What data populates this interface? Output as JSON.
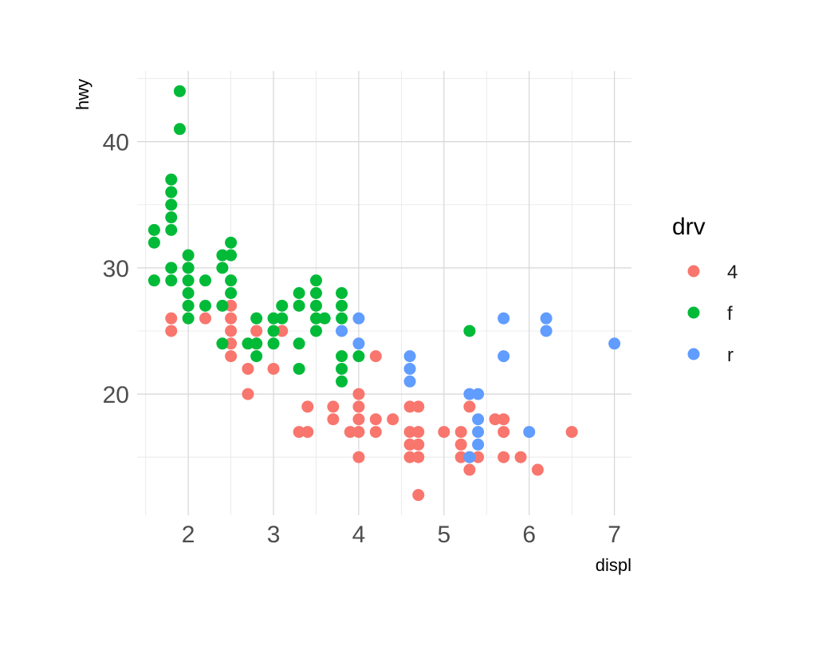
{
  "chart_data": {
    "type": "scatter",
    "title": "",
    "xlabel": "displ",
    "ylabel": "hwy",
    "xlim": [
      1.4,
      7.2
    ],
    "ylim": [
      10.4,
      45.6
    ],
    "x_ticks": [
      2,
      3,
      4,
      5,
      6,
      7
    ],
    "y_ticks": [
      20,
      30,
      40
    ],
    "grid": true,
    "legend": {
      "title": "drv",
      "position": "right"
    },
    "series": [
      {
        "name": "4",
        "color": "#F8766D",
        "points": [
          [
            1.8,
            26
          ],
          [
            1.8,
            25
          ],
          [
            2.2,
            26
          ],
          [
            2.5,
            27
          ],
          [
            2.5,
            26
          ],
          [
            2.5,
            25
          ],
          [
            2.5,
            24
          ],
          [
            2.5,
            23
          ],
          [
            2.7,
            22
          ],
          [
            2.7,
            20
          ],
          [
            2.8,
            25
          ],
          [
            2.8,
            24
          ],
          [
            3.0,
            22
          ],
          [
            3.1,
            25
          ],
          [
            3.3,
            17
          ],
          [
            3.4,
            19
          ],
          [
            3.4,
            17
          ],
          [
            3.7,
            19
          ],
          [
            3.7,
            18
          ],
          [
            3.9,
            17
          ],
          [
            4.0,
            20
          ],
          [
            4.0,
            19
          ],
          [
            4.0,
            18
          ],
          [
            4.0,
            17
          ],
          [
            4.0,
            15
          ],
          [
            4.2,
            23
          ],
          [
            4.2,
            18
          ],
          [
            4.2,
            17
          ],
          [
            4.4,
            18
          ],
          [
            4.6,
            19
          ],
          [
            4.6,
            17
          ],
          [
            4.6,
            16
          ],
          [
            4.6,
            15
          ],
          [
            4.7,
            19
          ],
          [
            4.7,
            17
          ],
          [
            4.7,
            16
          ],
          [
            4.7,
            15
          ],
          [
            4.7,
            12
          ],
          [
            5.0,
            17
          ],
          [
            5.2,
            17
          ],
          [
            5.2,
            16
          ],
          [
            5.2,
            15
          ],
          [
            5.3,
            19
          ],
          [
            5.3,
            15
          ],
          [
            5.3,
            14
          ],
          [
            5.4,
            15
          ],
          [
            5.6,
            18
          ],
          [
            5.7,
            18
          ],
          [
            5.7,
            17
          ],
          [
            5.7,
            15
          ],
          [
            5.9,
            15
          ],
          [
            6.1,
            14
          ],
          [
            6.5,
            17
          ]
        ]
      },
      {
        "name": "f",
        "color": "#00BA38",
        "points": [
          [
            1.6,
            33
          ],
          [
            1.6,
            32
          ],
          [
            1.6,
            29
          ],
          [
            1.8,
            37
          ],
          [
            1.8,
            36
          ],
          [
            1.8,
            35
          ],
          [
            1.8,
            34
          ],
          [
            1.8,
            33
          ],
          [
            1.8,
            30
          ],
          [
            1.8,
            29
          ],
          [
            1.9,
            44
          ],
          [
            1.9,
            41
          ],
          [
            2.0,
            31
          ],
          [
            2.0,
            30
          ],
          [
            2.0,
            29
          ],
          [
            2.0,
            28
          ],
          [
            2.0,
            27
          ],
          [
            2.0,
            26
          ],
          [
            2.2,
            29
          ],
          [
            2.2,
            27
          ],
          [
            2.4,
            31
          ],
          [
            2.4,
            30
          ],
          [
            2.4,
            27
          ],
          [
            2.4,
            24
          ],
          [
            2.5,
            32
          ],
          [
            2.5,
            31
          ],
          [
            2.5,
            29
          ],
          [
            2.5,
            28
          ],
          [
            2.7,
            24
          ],
          [
            2.8,
            26
          ],
          [
            2.8,
            24
          ],
          [
            2.8,
            23
          ],
          [
            3.0,
            26
          ],
          [
            3.0,
            25
          ],
          [
            3.0,
            24
          ],
          [
            3.1,
            27
          ],
          [
            3.1,
            26
          ],
          [
            3.3,
            28
          ],
          [
            3.3,
            27
          ],
          [
            3.3,
            24
          ],
          [
            3.3,
            22
          ],
          [
            3.5,
            29
          ],
          [
            3.5,
            28
          ],
          [
            3.5,
            27
          ],
          [
            3.5,
            26
          ],
          [
            3.5,
            25
          ],
          [
            3.6,
            26
          ],
          [
            3.8,
            28
          ],
          [
            3.8,
            27
          ],
          [
            3.8,
            26
          ],
          [
            3.8,
            23
          ],
          [
            3.8,
            22
          ],
          [
            3.8,
            21
          ],
          [
            4.0,
            23
          ],
          [
            5.3,
            25
          ]
        ]
      },
      {
        "name": "r",
        "color": "#619CFF",
        "points": [
          [
            3.8,
            25
          ],
          [
            4.0,
            26
          ],
          [
            4.0,
            24
          ],
          [
            4.6,
            23
          ],
          [
            4.6,
            22
          ],
          [
            4.6,
            21
          ],
          [
            5.3,
            20
          ],
          [
            5.3,
            15
          ],
          [
            5.4,
            20
          ],
          [
            5.4,
            18
          ],
          [
            5.4,
            17
          ],
          [
            5.4,
            16
          ],
          [
            5.7,
            26
          ],
          [
            5.7,
            23
          ],
          [
            6.0,
            17
          ],
          [
            6.2,
            26
          ],
          [
            6.2,
            25
          ],
          [
            7.0,
            24
          ]
        ]
      }
    ]
  }
}
